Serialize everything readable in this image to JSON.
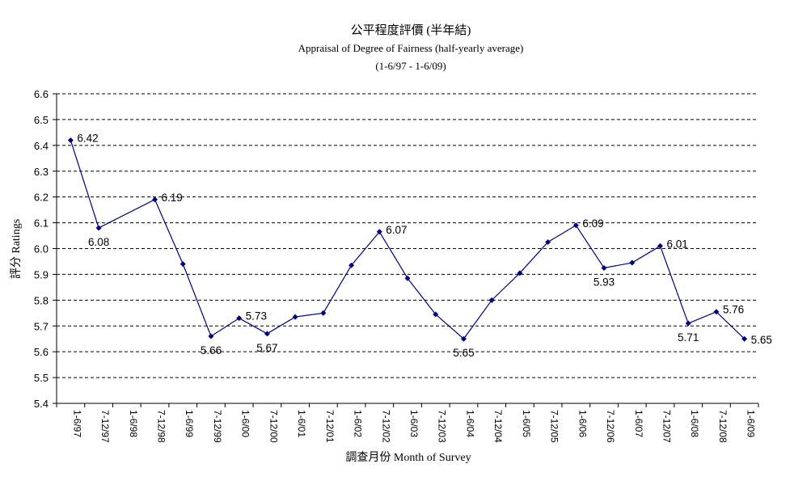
{
  "chart_data": {
    "type": "line",
    "title": "公平程度評價 (半年結)",
    "subtitle": "Appraisal of Degree of Fairness (half-yearly average)",
    "subtitle2": "(1-6/97 - 1-6/09)",
    "xlabel": "調查月份 Month of Survey",
    "ylabel": "評分 Ratings",
    "ylim": [
      5.4,
      6.6
    ],
    "yticks": [
      "5.4",
      "5.5",
      "5.6",
      "5.7",
      "5.8",
      "5.9",
      "6.0",
      "6.1",
      "6.2",
      "6.3",
      "6.4",
      "6.5",
      "6.6"
    ],
    "grid": true,
    "line_color": "#000080",
    "categories": [
      "1-6/97",
      "7-12/97",
      "1-6/98",
      "7-12/98",
      "1-6/99",
      "7-12/99",
      "1-6/00",
      "7-12/00",
      "1-6/01",
      "7-12/01",
      "1-6/02",
      "7-12/02",
      "1-6/03",
      "7-12/03",
      "1-6/04",
      "7-12/04",
      "1-6/05",
      "7-12/05",
      "1-6/06",
      "7-12/06",
      "1-6/07",
      "7-12/07",
      "1-6/08",
      "7-12/08",
      "1-6/09"
    ],
    "series": [
      {
        "values": [
          6.42,
          6.08,
          null,
          6.19,
          5.94,
          5.66,
          5.73,
          5.67,
          5.735,
          5.75,
          5.935,
          6.065,
          5.885,
          5.745,
          5.65,
          5.8,
          5.905,
          6.025,
          6.09,
          5.925,
          5.945,
          6.01,
          5.71,
          5.755,
          5.65
        ],
        "data_labels": [
          "6.42",
          "6.08",
          "",
          "6.19",
          "",
          "5.66",
          "5.73",
          "5.67",
          "",
          "",
          "",
          "6.07",
          "",
          "",
          "5.65",
          "",
          "",
          "",
          "6.09",
          "5.93",
          "",
          "6.01",
          "5.71",
          "5.76",
          "5.65"
        ]
      }
    ]
  }
}
